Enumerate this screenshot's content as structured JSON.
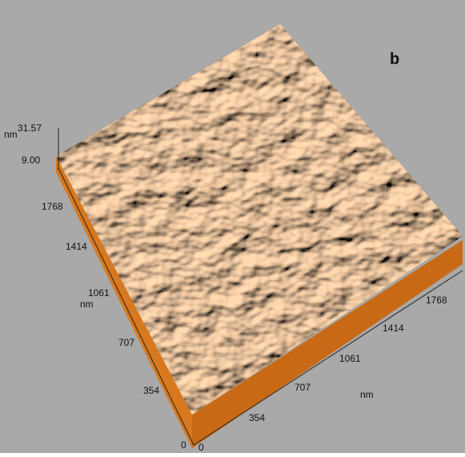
{
  "panel_label": "b",
  "z_axis": {
    "unit": "nm",
    "max": "31.57",
    "min": "9.00"
  },
  "y_axis": {
    "unit": "nm",
    "ticks": [
      "0",
      "354",
      "707",
      "1061",
      "1414",
      "1768"
    ]
  },
  "x_axis": {
    "unit": "nm",
    "ticks": [
      "0",
      "354",
      "707",
      "1061",
      "1414",
      "1768"
    ]
  }
}
